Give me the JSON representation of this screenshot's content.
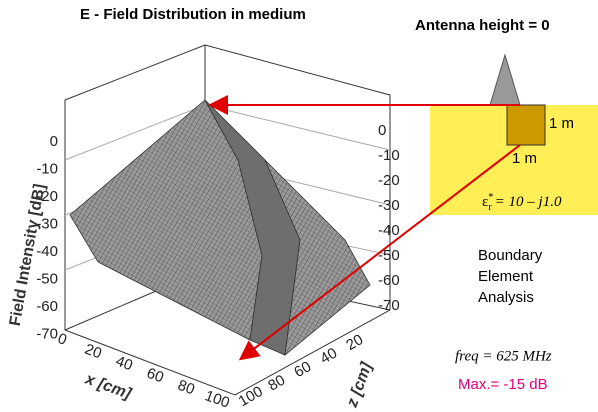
{
  "title": "E - Field Distribution in medium",
  "antenna_label": "Antenna height = 0",
  "box": {
    "width_label": "1 m",
    "depth_label": "1 m"
  },
  "permittivity": {
    "symbol": "ε",
    "sup": "*",
    "sub": "r",
    "expression": "= 10 –  j1.0"
  },
  "method": [
    "Boundary",
    "Element",
    "Analysis"
  ],
  "frequency": "freq =  625  MHz",
  "max": "Max.= -15 dB",
  "plot": {
    "intensity_label": "Field Intensity [dB]",
    "left_ticks": [
      "0",
      "-10",
      "-20",
      "-30",
      "-40",
      "-50",
      "-60",
      "-70"
    ],
    "right_ticks": [
      "0",
      "-10",
      "-20",
      "-30",
      "-40",
      "-50",
      "-60",
      "-70"
    ],
    "x_label": "x [cm]",
    "x_ticks": [
      "0",
      "20",
      "40",
      "60",
      "80",
      "100"
    ],
    "z_label": "z [cm]",
    "z_ticks": [
      "20",
      "40",
      "60",
      "80",
      "100"
    ]
  }
}
